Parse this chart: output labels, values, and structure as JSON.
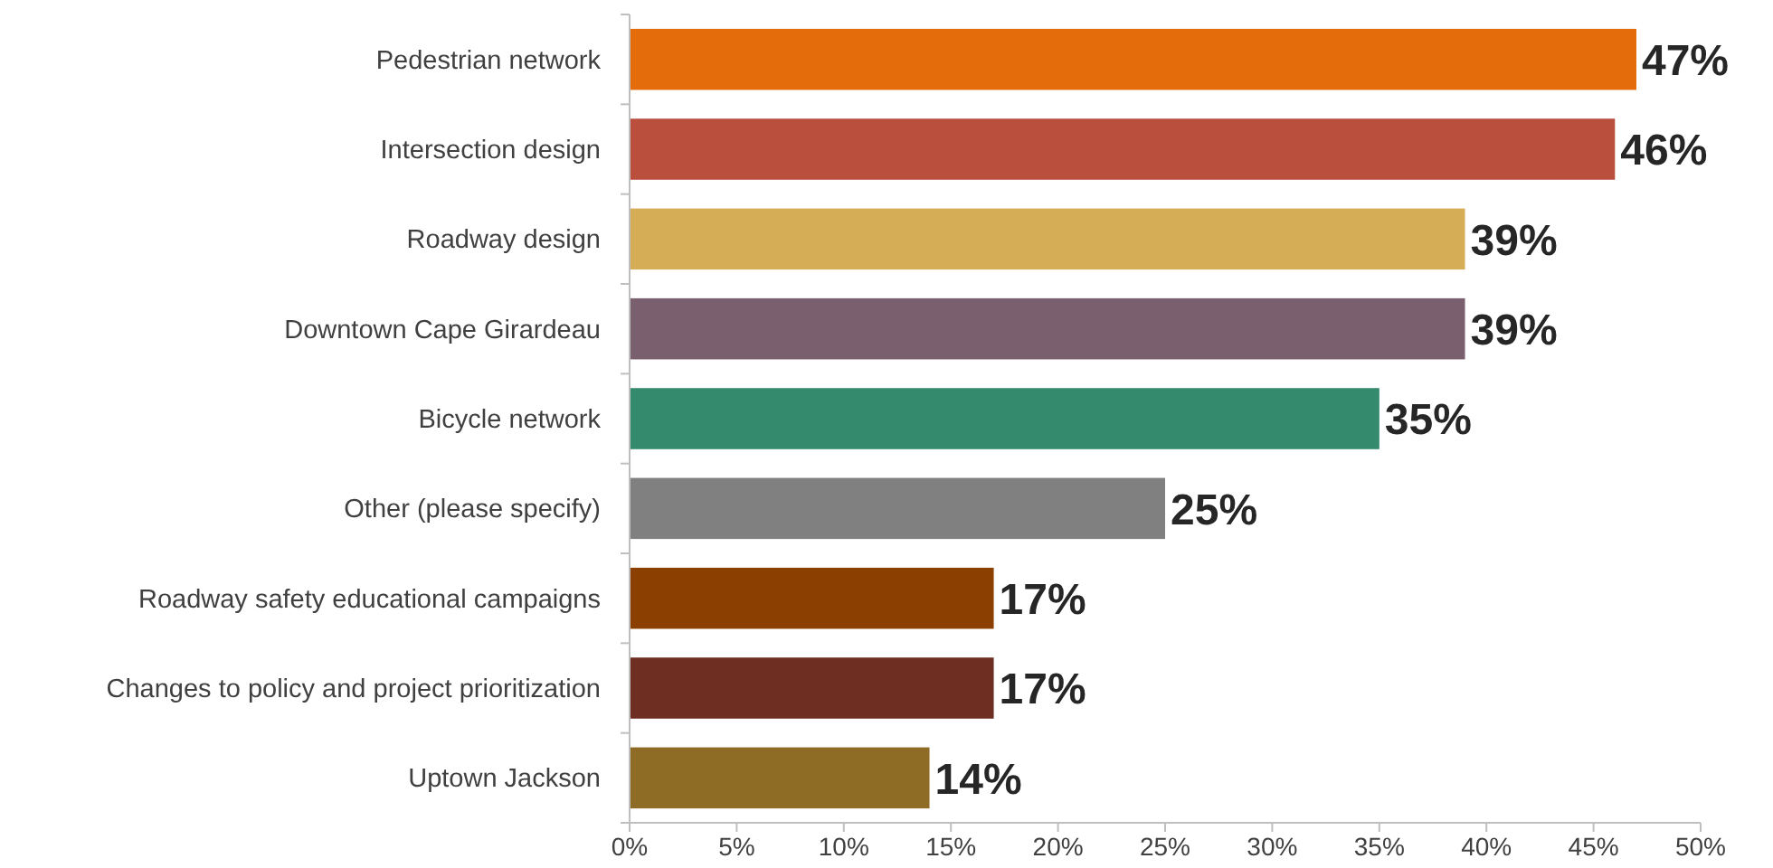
{
  "chart_data": {
    "type": "bar",
    "orientation": "horizontal",
    "categories": [
      "Pedestrian network",
      "Intersection design",
      "Roadway design",
      "Downtown Cape Girardeau",
      "Bicycle network",
      "Other (please specify)",
      "Roadway safety educational campaigns",
      "Changes to policy and project prioritization",
      "Uptown Jackson"
    ],
    "values": [
      47,
      46,
      39,
      39,
      35,
      25,
      17,
      17,
      14
    ],
    "value_labels": [
      "47%",
      "46%",
      "39%",
      "39%",
      "35%",
      "25%",
      "17%",
      "17%",
      "14%"
    ],
    "colors": [
      "#e46c0a",
      "#b94f3c",
      "#d5ad57",
      "#7a5f6e",
      "#338a6c",
      "#808080",
      "#8b3f00",
      "#6e2e22",
      "#8f6c26"
    ],
    "xlim": [
      0,
      50
    ],
    "xticks": [
      {
        "value": 0,
        "label": "0%"
      },
      {
        "value": 5,
        "label": "5%"
      },
      {
        "value": 10,
        "label": "10%"
      },
      {
        "value": 15,
        "label": "15%"
      },
      {
        "value": 20,
        "label": "20%"
      },
      {
        "value": 25,
        "label": "25%"
      },
      {
        "value": 30,
        "label": "30%"
      },
      {
        "value": 35,
        "label": "35%"
      },
      {
        "value": 40,
        "label": "40%"
      },
      {
        "value": 45,
        "label": "45%"
      },
      {
        "value": 50,
        "label": "50%"
      }
    ],
    "grid": false
  }
}
